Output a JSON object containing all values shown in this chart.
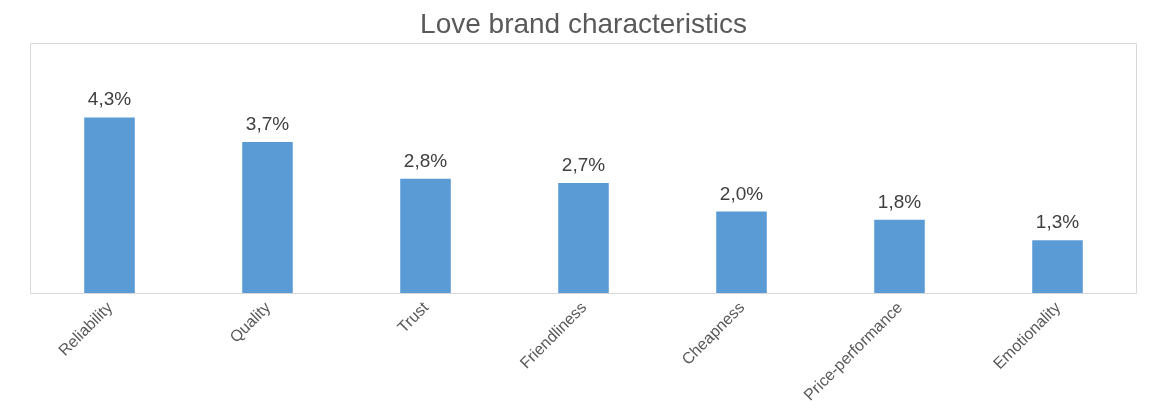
{
  "chart_data": {
    "type": "bar",
    "title": "Love brand characteristics",
    "categories": [
      "Reliability",
      "Quality",
      "Trust",
      "Friendliness",
      "Cheapness",
      "Price-performance",
      "Emotionality"
    ],
    "values": [
      4.3,
      3.7,
      2.8,
      2.7,
      2.0,
      1.8,
      1.3
    ],
    "value_labels": [
      "4,3%",
      "3,7%",
      "2,8%",
      "2,7%",
      "2,0%",
      "1,8%",
      "1,3%"
    ],
    "color": "#5b9bd5",
    "grid": false
  }
}
